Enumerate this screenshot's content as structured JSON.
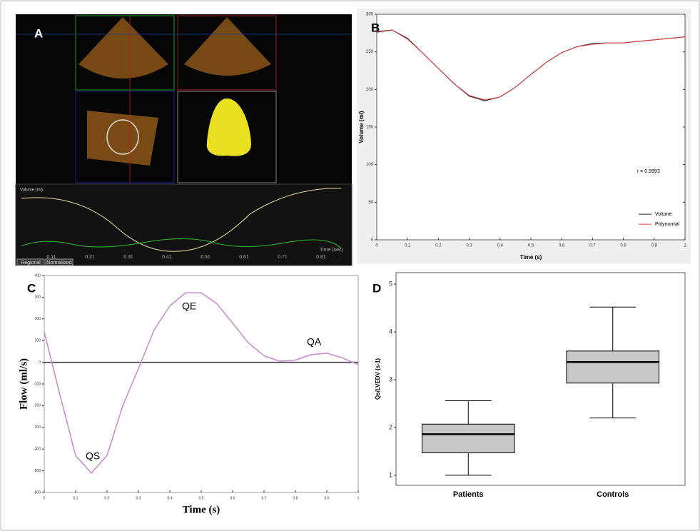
{
  "panel_a": {
    "label": "A",
    "axis_label": "Time (sec)",
    "curve_label": "Volume (ml)",
    "x_tick_labels": [
      "0.11",
      "0.21",
      "0.31",
      "0.41",
      "0.51",
      "0.61",
      "0.71",
      "0.81"
    ],
    "buttons": [
      "Regional",
      "Normalized"
    ]
  },
  "chart_data": [
    {
      "type": "line",
      "panel_label": "B",
      "xlabel": "Time (s)",
      "ylabel": "Volume (ml)",
      "annotation": "r = 0.9993",
      "xlim": [
        0,
        1
      ],
      "ylim": [
        0,
        300
      ],
      "xticks": [
        0,
        0.1,
        0.2,
        0.3,
        0.4,
        0.5,
        0.6,
        0.7,
        0.8,
        0.9,
        1
      ],
      "yticks": [
        0,
        50,
        100,
        150,
        200,
        250,
        300
      ],
      "legend": "lower right",
      "x": [
        0,
        0.05,
        0.1,
        0.15,
        0.2,
        0.25,
        0.3,
        0.35,
        0.4,
        0.45,
        0.5,
        0.55,
        0.6,
        0.65,
        0.7,
        0.75,
        0.8,
        0.85,
        0.9,
        0.95,
        1
      ],
      "series": [
        {
          "name": "Volume",
          "color": "#222222",
          "values": [
            277,
            279,
            268,
            248,
            228,
            208,
            191,
            185,
            190,
            203,
            220,
            236,
            249,
            257,
            261,
            262,
            262,
            264,
            266,
            268,
            270
          ]
        },
        {
          "name": "Polynomial",
          "color": "#e04040",
          "values": [
            276,
            279,
            267,
            248,
            228,
            208,
            192,
            186,
            190,
            203,
            220,
            236,
            249,
            257,
            260,
            262,
            262,
            264,
            266,
            268,
            270
          ]
        }
      ]
    },
    {
      "type": "line",
      "panel_label": "C",
      "xlabel": "Time (s)",
      "ylabel": "Flow (ml/s)",
      "annotations": [
        "QS",
        "QE",
        "QA"
      ],
      "xlim": [
        0,
        1
      ],
      "ylim": [
        -600,
        400
      ],
      "xticks": [
        0,
        0.1,
        0.2,
        0.3,
        0.4,
        0.5,
        0.6,
        0.7,
        0.8,
        0.9,
        1
      ],
      "yticks": [
        -600,
        -500,
        -400,
        -300,
        -200,
        -100,
        0,
        100,
        200,
        300,
        400
      ],
      "x": [
        0,
        0.05,
        0.1,
        0.15,
        0.2,
        0.25,
        0.3,
        0.35,
        0.4,
        0.45,
        0.5,
        0.55,
        0.6,
        0.65,
        0.7,
        0.75,
        0.8,
        0.85,
        0.9,
        0.95,
        1
      ],
      "series": [
        {
          "color": "#c890d0",
          "values": [
            140,
            -150,
            -430,
            -510,
            -430,
            -200,
            -30,
            150,
            260,
            320,
            320,
            270,
            180,
            90,
            30,
            5,
            10,
            35,
            42,
            20,
            -10
          ]
        }
      ]
    },
    {
      "type": "box",
      "panel_label": "D",
      "ylabel": "Qs/LVEDV (s-1)",
      "color": "#c8c8c8",
      "ylim": [
        0.79,
        5.24
      ],
      "yticks": [
        1,
        2,
        3,
        4,
        5
      ],
      "categories": [
        "Patients",
        "Controls"
      ],
      "boxes": [
        {
          "min": 1.0,
          "q1": 1.47,
          "median": 1.86,
          "q3": 2.07,
          "max": 2.56
        },
        {
          "min": 2.2,
          "q1": 2.93,
          "median": 3.37,
          "q3": 3.6,
          "max": 4.52
        }
      ]
    }
  ]
}
